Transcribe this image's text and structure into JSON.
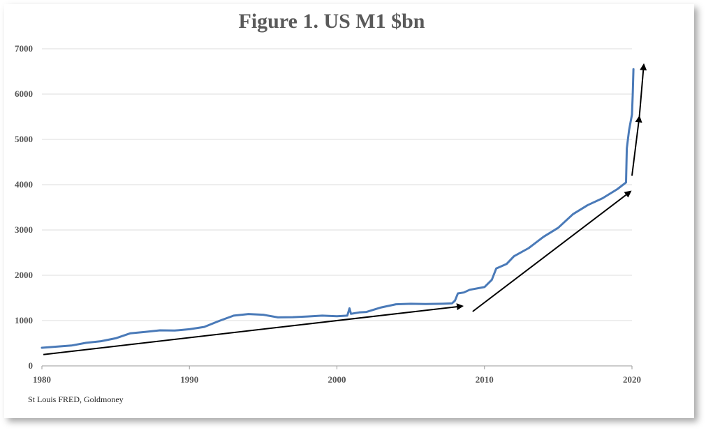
{
  "chart_data": {
    "type": "line",
    "title": "Figure 1. US M1 $bn",
    "xlabel": "",
    "ylabel": "",
    "xlim": [
      1980,
      2020
    ],
    "ylim": [
      0,
      7000
    ],
    "x_ticks": [
      1980,
      1990,
      2000,
      2010,
      2020
    ],
    "y_ticks": [
      0,
      1000,
      2000,
      3000,
      4000,
      5000,
      6000,
      7000
    ],
    "grid": "horizontal",
    "legend": "none",
    "series": [
      {
        "color": "#4a7ab8",
        "points": [
          [
            1980.0,
            400
          ],
          [
            1981.0,
            425
          ],
          [
            1982.0,
            450
          ],
          [
            1983.0,
            510
          ],
          [
            1984.0,
            545
          ],
          [
            1985.0,
            610
          ],
          [
            1986.0,
            720
          ],
          [
            1987.0,
            750
          ],
          [
            1988.0,
            785
          ],
          [
            1989.0,
            780
          ],
          [
            1990.0,
            810
          ],
          [
            1991.0,
            860
          ],
          [
            1992.0,
            990
          ],
          [
            1993.0,
            1110
          ],
          [
            1994.0,
            1145
          ],
          [
            1995.0,
            1130
          ],
          [
            1996.0,
            1070
          ],
          [
            1997.0,
            1075
          ],
          [
            1998.0,
            1090
          ],
          [
            1999.0,
            1110
          ],
          [
            2000.0,
            1095
          ],
          [
            2000.7,
            1110
          ],
          [
            2000.85,
            1270
          ],
          [
            2000.95,
            1150
          ],
          [
            2001.5,
            1180
          ],
          [
            2002.0,
            1190
          ],
          [
            2003.0,
            1290
          ],
          [
            2004.0,
            1360
          ],
          [
            2005.0,
            1370
          ],
          [
            2006.0,
            1365
          ],
          [
            2007.0,
            1370
          ],
          [
            2007.8,
            1380
          ],
          [
            2008.0,
            1440
          ],
          [
            2008.2,
            1600
          ],
          [
            2008.6,
            1620
          ],
          [
            2009.0,
            1680
          ],
          [
            2010.0,
            1740
          ],
          [
            2010.5,
            1900
          ],
          [
            2010.8,
            2150
          ],
          [
            2011.5,
            2250
          ],
          [
            2012.0,
            2420
          ],
          [
            2013.0,
            2600
          ],
          [
            2014.0,
            2850
          ],
          [
            2015.0,
            3050
          ],
          [
            2016.0,
            3350
          ],
          [
            2017.0,
            3550
          ],
          [
            2018.0,
            3700
          ],
          [
            2019.0,
            3900
          ],
          [
            2019.6,
            4050
          ],
          [
            2019.65,
            4800
          ],
          [
            2019.8,
            5200
          ],
          [
            2020.0,
            5550
          ],
          [
            2020.05,
            6000
          ],
          [
            2020.1,
            6550
          ]
        ]
      }
    ],
    "annotations": [
      {
        "type": "arrow",
        "from": [
          1980.1,
          250
        ],
        "to": [
          2008.5,
          1320
        ]
      },
      {
        "type": "arrow",
        "from": [
          2009.2,
          1200
        ],
        "to": [
          2019.9,
          3850
        ]
      },
      {
        "type": "arrow",
        "from": [
          2020.0,
          4200
        ],
        "to": [
          2020.5,
          5500
        ]
      },
      {
        "type": "arrow",
        "from": [
          2020.5,
          5500
        ],
        "to": [
          2020.8,
          6650
        ]
      }
    ]
  },
  "source_note": "St Louis FRED, Goldmoney"
}
